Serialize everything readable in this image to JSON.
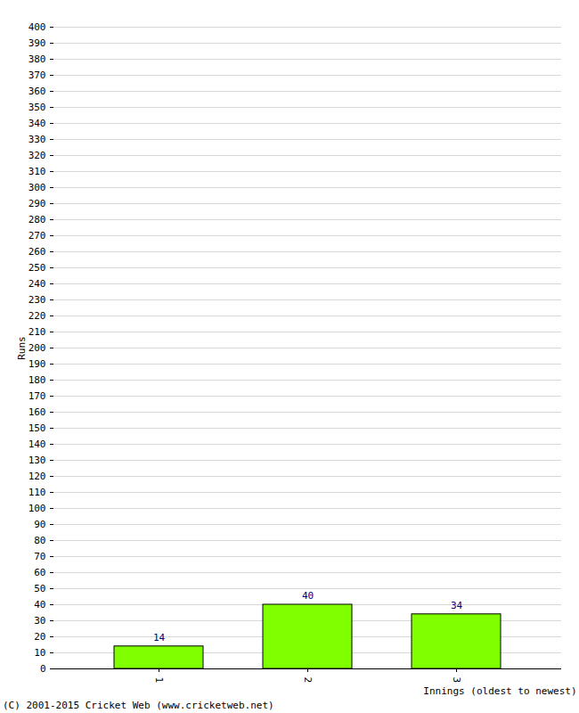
{
  "chart_data": {
    "type": "bar",
    "categories": [
      "1",
      "2",
      "3"
    ],
    "values": [
      14,
      40,
      34
    ],
    "color": "#80ff00",
    "x_label": "Innings (oldest to newest)",
    "y_label": "Runs",
    "caption": "(C) 2001-2015 Cricket Web (www.cricketweb.net)",
    "ylim": [
      0,
      400
    ],
    "yticks": [
      0,
      10,
      20,
      30,
      40,
      50,
      60,
      70,
      80,
      90,
      100,
      110,
      120,
      130,
      140,
      150,
      160,
      170,
      180,
      190,
      200,
      210,
      220,
      230,
      240,
      250,
      260,
      270,
      280,
      290,
      300,
      310,
      320,
      330,
      340,
      350,
      360,
      370,
      380,
      390,
      400
    ],
    "grid": true,
    "data_labels": true
  }
}
